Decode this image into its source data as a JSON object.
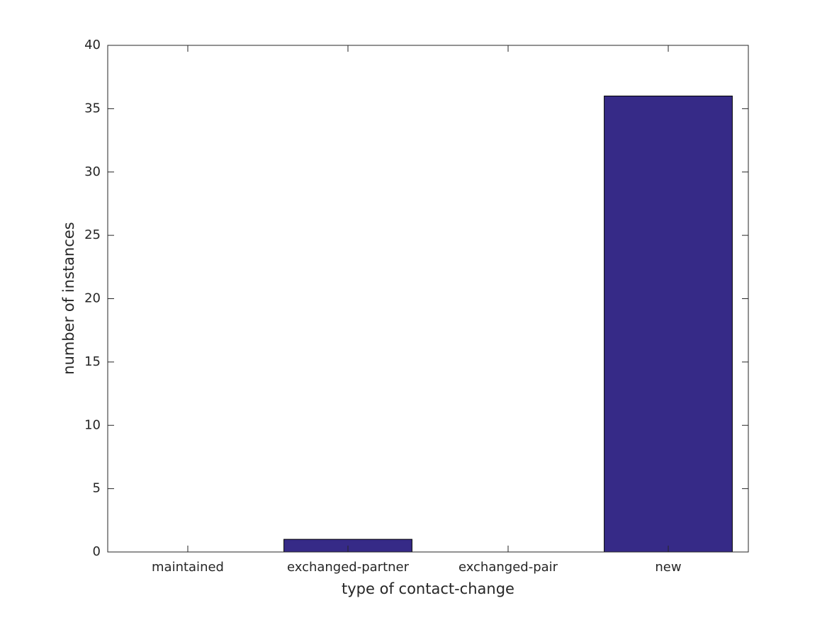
{
  "chart_data": {
    "type": "bar",
    "xlabel": "type of contact-change",
    "ylabel": "number of instances",
    "categories": [
      "maintained",
      "exchanged-partner",
      "exchanged-pair",
      "new"
    ],
    "values": [
      0,
      1,
      0,
      36
    ],
    "color": "#362a87",
    "ylim": [
      0,
      40
    ],
    "yticks": [
      0,
      5,
      10,
      15,
      20,
      25,
      30,
      35,
      40
    ]
  }
}
